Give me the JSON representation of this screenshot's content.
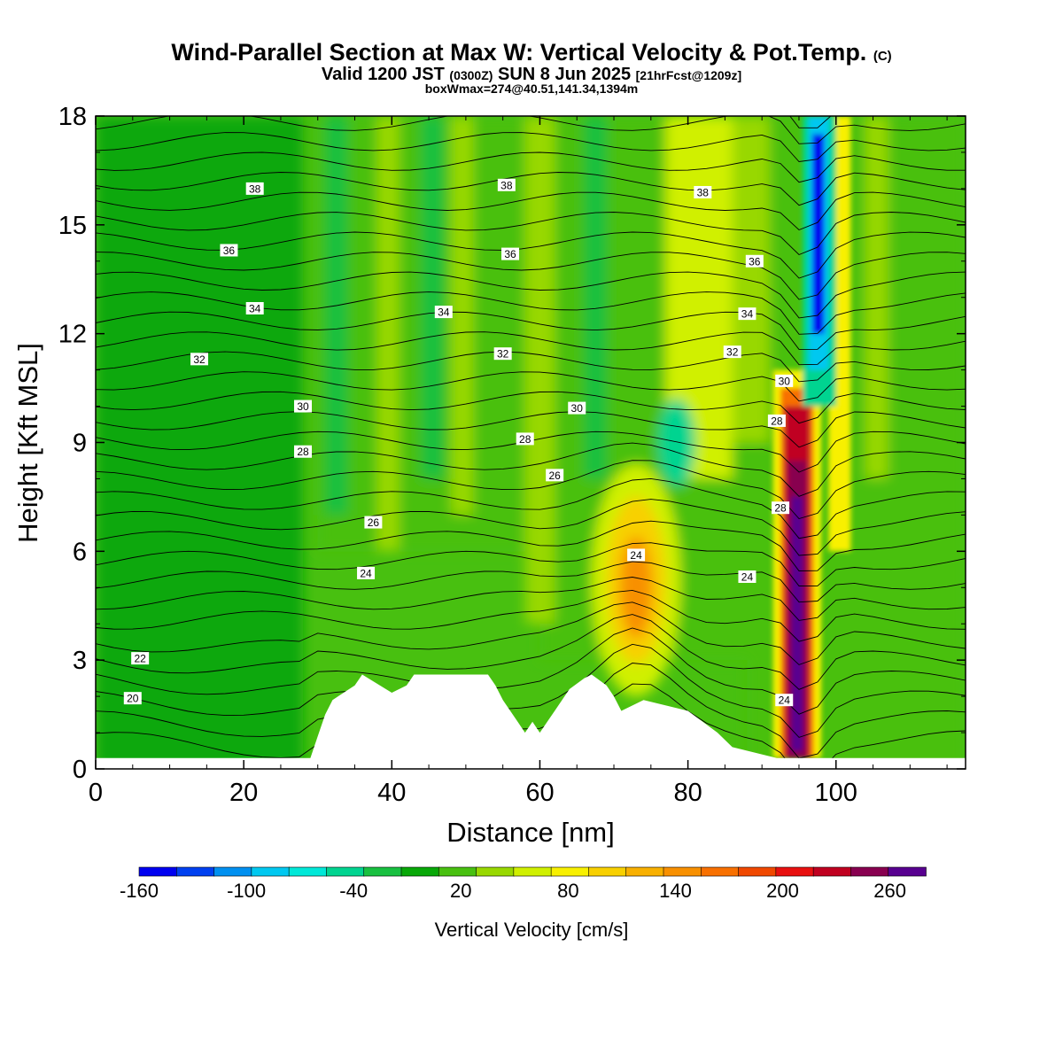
{
  "header": {
    "title_main": "Wind-Parallel Section at Max W: Vertical Velocity & Pot.Temp.",
    "title_mark": "(C)",
    "valid_prefix": "Valid 1200 JST",
    "valid_z": "(0300Z)",
    "valid_date": "SUN 8 Jun 2025",
    "valid_fcst": "[21hrFcst@1209z]",
    "boxline": "boxWmax=274@40.51,141.34,1394m"
  },
  "colors": {
    "scale": [
      "#0000f0",
      "#0040f0",
      "#0090f0",
      "#00c8f0",
      "#00e8d8",
      "#00d490",
      "#18c040",
      "#08a808",
      "#48c010",
      "#98d800",
      "#d0f000",
      "#f8f000",
      "#f8d000",
      "#f8b000",
      "#f89000",
      "#f87000",
      "#f04800",
      "#e81010",
      "#c00020",
      "#880050",
      "#580090"
    ],
    "terrain": "#ffffff",
    "contour": "#000000"
  },
  "chart_data": {
    "type": "heatmap",
    "xlabel": "Distance [nm]",
    "ylabel": "Height [Kft MSL]",
    "xlim": [
      0,
      117.5
    ],
    "ylim": [
      0,
      18
    ],
    "xticks": [
      "0",
      "20",
      "40",
      "60",
      "80",
      "100"
    ],
    "xtick_values": [
      0,
      20,
      40,
      60,
      80,
      100
    ],
    "yticks": [
      "0",
      "3",
      "6",
      "9",
      "12",
      "15",
      "18"
    ],
    "ytick_values": [
      0,
      3,
      6,
      9,
      12,
      15,
      18
    ],
    "colorbar": {
      "title": "Vertical Velocity [cm/s]",
      "labels": [
        "-160",
        "-100",
        "-40",
        "20",
        "80",
        "140",
        "200",
        "260"
      ],
      "label_values": [
        -160,
        -100,
        -40,
        20,
        80,
        140,
        200,
        260
      ],
      "min": -160,
      "max": 280,
      "step": 20
    },
    "max_w": 274,
    "features": [
      {
        "name": "updraft",
        "x": 94.5,
        "y": 5.0,
        "w": 274
      },
      {
        "name": "downdraft",
        "x": 97.0,
        "y": 13.5,
        "w": -150
      },
      {
        "name": "updraft",
        "x": 73.0,
        "y": 5.0,
        "w": 130
      }
    ],
    "terrain": [
      [
        0,
        0.3
      ],
      [
        29,
        0.3
      ],
      [
        30,
        0.9
      ],
      [
        31,
        1.5
      ],
      [
        32,
        1.9
      ],
      [
        35,
        2.3
      ],
      [
        36,
        2.6
      ],
      [
        40,
        2.1
      ],
      [
        42,
        2.3
      ],
      [
        43,
        2.6
      ],
      [
        53,
        2.6
      ],
      [
        54,
        2.3
      ],
      [
        55,
        1.9
      ],
      [
        57,
        1.3
      ],
      [
        58,
        1.0
      ],
      [
        59,
        1.3
      ],
      [
        60,
        1.0
      ],
      [
        61,
        1.3
      ],
      [
        62,
        1.6
      ],
      [
        63,
        1.9
      ],
      [
        64,
        2.2
      ],
      [
        66,
        2.5
      ],
      [
        67,
        2.6
      ],
      [
        69,
        2.3
      ],
      [
        70,
        2.0
      ],
      [
        71,
        1.6
      ],
      [
        74,
        1.9
      ],
      [
        80,
        1.6
      ],
      [
        82,
        1.3
      ],
      [
        84,
        1.0
      ],
      [
        86,
        0.6
      ],
      [
        92,
        0.3
      ],
      [
        117.5,
        0.3
      ]
    ],
    "theta_contours": [
      {
        "value": "20",
        "label_x": 5,
        "label_y": 1.95
      },
      {
        "value": "22",
        "label_x": 6,
        "label_y": 3.05
      },
      {
        "value": "24",
        "label_x": 36.5,
        "label_y": 5.4
      },
      {
        "value": "24",
        "label_x": 73,
        "label_y": 5.9
      },
      {
        "value": "24",
        "label_x": 88,
        "label_y": 5.3
      },
      {
        "value": "24",
        "label_x": 93,
        "label_y": 1.9
      },
      {
        "value": "26",
        "label_x": 37.5,
        "label_y": 6.8
      },
      {
        "value": "26",
        "label_x": 62,
        "label_y": 8.1
      },
      {
        "value": "28",
        "label_x": 28,
        "label_y": 8.75
      },
      {
        "value": "28",
        "label_x": 58,
        "label_y": 9.1
      },
      {
        "value": "28",
        "label_x": 92,
        "label_y": 9.6
      },
      {
        "value": "28",
        "label_x": 92.5,
        "label_y": 7.2
      },
      {
        "value": "30",
        "label_x": 28,
        "label_y": 10.0
      },
      {
        "value": "30",
        "label_x": 65,
        "label_y": 9.95
      },
      {
        "value": "30",
        "label_x": 93,
        "label_y": 10.7
      },
      {
        "value": "32",
        "label_x": 14,
        "label_y": 11.3
      },
      {
        "value": "32",
        "label_x": 55,
        "label_y": 11.45
      },
      {
        "value": "32",
        "label_x": 86,
        "label_y": 11.5
      },
      {
        "value": "34",
        "label_x": 21.5,
        "label_y": 12.7
      },
      {
        "value": "34",
        "label_x": 47,
        "label_y": 12.6
      },
      {
        "value": "34",
        "label_x": 88,
        "label_y": 12.55
      },
      {
        "value": "36",
        "label_x": 18,
        "label_y": 14.3
      },
      {
        "value": "36",
        "label_x": 56,
        "label_y": 14.2
      },
      {
        "value": "36",
        "label_x": 89,
        "label_y": 14.0
      },
      {
        "value": "38",
        "label_x": 21.5,
        "label_y": 16.0
      },
      {
        "value": "38",
        "label_x": 55.5,
        "label_y": 16.1
      },
      {
        "value": "38",
        "label_x": 82,
        "label_y": 15.9
      }
    ]
  }
}
